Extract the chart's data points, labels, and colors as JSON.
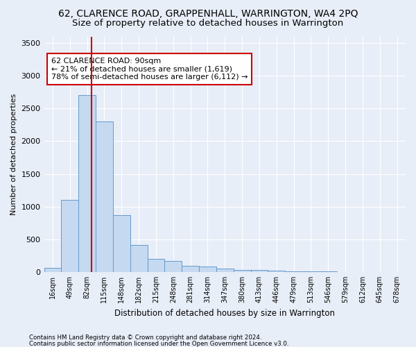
{
  "title": "62, CLARENCE ROAD, GRAPPENHALL, WARRINGTON, WA4 2PQ",
  "subtitle": "Size of property relative to detached houses in Warrington",
  "xlabel": "Distribution of detached houses by size in Warrington",
  "ylabel": "Number of detached properties",
  "categories": [
    "16sqm",
    "49sqm",
    "82sqm",
    "115sqm",
    "148sqm",
    "182sqm",
    "215sqm",
    "248sqm",
    "281sqm",
    "314sqm",
    "347sqm",
    "380sqm",
    "413sqm",
    "446sqm",
    "479sqm",
    "513sqm",
    "546sqm",
    "579sqm",
    "612sqm",
    "645sqm",
    "678sqm"
  ],
  "values": [
    60,
    1100,
    2700,
    2300,
    870,
    415,
    200,
    170,
    100,
    80,
    55,
    30,
    30,
    25,
    15,
    8,
    5,
    3,
    2,
    1,
    0
  ],
  "bar_color": "#c5d9f0",
  "bar_edge_color": "#6699cc",
  "red_line_color": "#cc0000",
  "annotation_text": "62 CLARENCE ROAD: 90sqm\n← 21% of detached houses are smaller (1,619)\n78% of semi-detached houses are larger (6,112) →",
  "annotation_box_color": "white",
  "annotation_box_edge": "#cc0000",
  "ylim": [
    0,
    3600
  ],
  "yticks": [
    0,
    500,
    1000,
    1500,
    2000,
    2500,
    3000,
    3500
  ],
  "footer_line1": "Contains HM Land Registry data © Crown copyright and database right 2024.",
  "footer_line2": "Contains public sector information licensed under the Open Government Licence v3.0.",
  "bg_color": "#e8eef8",
  "plot_bg_color": "#e8eef8",
  "grid_color": "white",
  "title_fontsize": 10,
  "subtitle_fontsize": 9.5,
  "xlabel_fontsize": 8.5,
  "ylabel_fontsize": 8
}
